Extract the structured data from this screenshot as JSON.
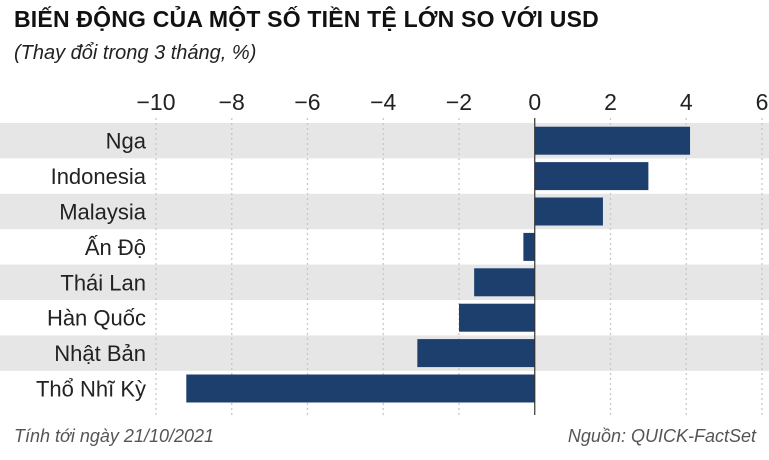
{
  "header": {
    "title": "BIẾN ĐỘNG CỦA MỘT SỐ TIỀN TỆ LỚN SO VỚI USD",
    "subtitle": "(Thay đổi trong 3 tháng, %)"
  },
  "footer": {
    "note": "Tính tới ngày 21/10/2021",
    "source": "Nguồn: QUICK-FactSet"
  },
  "colors": {
    "bar": "#1c3f6e",
    "stripe": "#e6e6e6",
    "grid": "#c8c8c8"
  },
  "chart_data": {
    "type": "bar",
    "orientation": "horizontal",
    "categories": [
      "Nga",
      "Indonesia",
      "Malaysia",
      "Ấn Độ",
      "Thái Lan",
      "Hàn Quốc",
      "Nhật Bản",
      "Thổ Nhĩ Kỳ"
    ],
    "values": [
      4.1,
      3.0,
      1.8,
      -0.3,
      -1.6,
      -2.0,
      -3.1,
      -9.2
    ],
    "xlim": [
      -10,
      6
    ],
    "xticks": [
      -10,
      -8,
      -6,
      -4,
      -2,
      0,
      2,
      4,
      6
    ],
    "xtick_labels": [
      "−10",
      "−8",
      "−6",
      "−4",
      "−2",
      "0",
      "2",
      "4",
      "6"
    ],
    "axis_position": "top",
    "grid": true,
    "alternating_row_shading": true
  }
}
